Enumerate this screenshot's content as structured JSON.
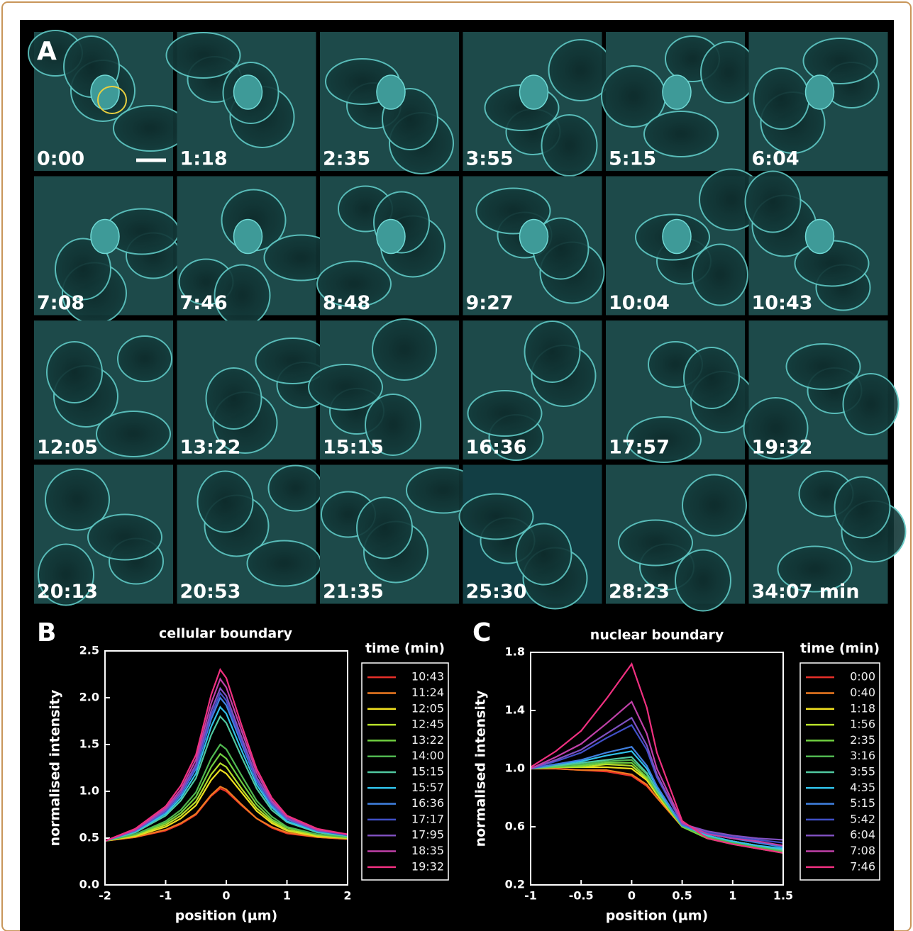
{
  "panel_a": {
    "label": "A",
    "frames": [
      "0:00",
      "1:18",
      "2:35",
      "3:55",
      "5:15",
      "6:04",
      "7:08",
      "7:46",
      "8:48",
      "9:27",
      "10:04",
      "10:43",
      "12:05",
      "13:22",
      "15:15",
      "16:36",
      "17:57",
      "19:32",
      "20:13",
      "20:53",
      "21:35",
      "25:30",
      "28:23",
      "34:07 min"
    ]
  },
  "chart_data": [
    {
      "type": "line",
      "panel_label": "B",
      "title": "cellular boundary",
      "xlabel": "position (µm)",
      "ylabel": "normalised intensity",
      "legend_title": "time (min)",
      "x": [
        -2,
        -1.5,
        -1,
        -0.75,
        -0.5,
        -0.25,
        -0.1,
        0,
        0.25,
        0.5,
        0.75,
        1,
        1.5,
        2
      ],
      "xlim": [
        -2,
        2
      ],
      "xticks": [
        -2,
        -1,
        0,
        1,
        2
      ],
      "ylim": [
        0,
        2.5
      ],
      "yticks": [
        {
          "value": 0,
          "label": "0.0"
        },
        0.5,
        {
          "value": 1,
          "label": "1.0"
        },
        1.5,
        {
          "value": 2,
          "label": "2.0"
        },
        2.5
      ],
      "series": [
        {
          "name": "10:43",
          "color": "#e8302a",
          "values": [
            0.47,
            0.51,
            0.58,
            0.65,
            0.75,
            0.95,
            1.03,
            1.0,
            0.85,
            0.71,
            0.61,
            0.55,
            0.51,
            0.49
          ]
        },
        {
          "name": "11:24",
          "color": "#f07a20",
          "values": [
            0.47,
            0.51,
            0.59,
            0.66,
            0.76,
            0.96,
            1.05,
            1.02,
            0.86,
            0.71,
            0.62,
            0.56,
            0.51,
            0.49
          ]
        },
        {
          "name": "12:05",
          "color": "#f0e020",
          "values": [
            0.47,
            0.52,
            0.62,
            0.71,
            0.85,
            1.12,
            1.23,
            1.19,
            0.99,
            0.79,
            0.66,
            0.58,
            0.52,
            0.5
          ]
        },
        {
          "name": "12:45",
          "color": "#b8e02a",
          "values": [
            0.47,
            0.53,
            0.64,
            0.74,
            0.89,
            1.18,
            1.3,
            1.26,
            1.03,
            0.82,
            0.68,
            0.59,
            0.53,
            0.5
          ]
        },
        {
          "name": "13:22",
          "color": "#70d040",
          "values": [
            0.47,
            0.54,
            0.66,
            0.77,
            0.94,
            1.26,
            1.4,
            1.35,
            1.1,
            0.86,
            0.7,
            0.61,
            0.54,
            0.51
          ]
        },
        {
          "name": "14:00",
          "color": "#50b850",
          "values": [
            0.47,
            0.54,
            0.68,
            0.8,
            0.99,
            1.35,
            1.5,
            1.45,
            1.17,
            0.9,
            0.73,
            0.62,
            0.54,
            0.51
          ]
        },
        {
          "name": "15:15",
          "color": "#50c8a0",
          "values": [
            0.47,
            0.56,
            0.74,
            0.9,
            1.14,
            1.6,
            1.8,
            1.73,
            1.37,
            1.03,
            0.8,
            0.67,
            0.56,
            0.52
          ]
        },
        {
          "name": "15:57",
          "color": "#30c0e8",
          "values": [
            0.47,
            0.57,
            0.76,
            0.93,
            1.19,
            1.69,
            1.9,
            1.83,
            1.44,
            1.07,
            0.83,
            0.68,
            0.57,
            0.53
          ]
        },
        {
          "name": "16:36",
          "color": "#4080e0",
          "values": [
            0.47,
            0.58,
            0.78,
            0.96,
            1.24,
            1.77,
            2.0,
            1.92,
            1.51,
            1.11,
            0.85,
            0.7,
            0.58,
            0.53
          ]
        },
        {
          "name": "17:17",
          "color": "#4050c8",
          "values": [
            0.47,
            0.58,
            0.79,
            0.98,
            1.26,
            1.81,
            2.05,
            1.97,
            1.54,
            1.13,
            0.87,
            0.71,
            0.58,
            0.53
          ]
        },
        {
          "name": "17:95",
          "color": "#8050c0",
          "values": [
            0.47,
            0.58,
            0.8,
            0.99,
            1.29,
            1.86,
            2.1,
            2.02,
            1.58,
            1.15,
            0.88,
            0.71,
            0.58,
            0.54
          ]
        },
        {
          "name": "18:35",
          "color": "#c040a8",
          "values": [
            0.47,
            0.59,
            0.82,
            1.02,
            1.34,
            1.94,
            2.2,
            2.11,
            1.65,
            1.2,
            0.9,
            0.73,
            0.59,
            0.54
          ]
        },
        {
          "name": "19:32",
          "color": "#f03080",
          "values": [
            0.47,
            0.6,
            0.84,
            1.06,
            1.39,
            2.03,
            2.3,
            2.21,
            1.71,
            1.24,
            0.93,
            0.74,
            0.6,
            0.54
          ]
        }
      ]
    },
    {
      "type": "line",
      "panel_label": "C",
      "title": "nuclear boundary",
      "xlabel": "position (µm)",
      "ylabel": "normalised intensity",
      "legend_title": "time (min)",
      "x": [
        -1,
        -0.75,
        -0.5,
        -0.25,
        0,
        0.15,
        0.25,
        0.5,
        0.75,
        1,
        1.25,
        1.5
      ],
      "xlim": [
        -1,
        1.5
      ],
      "xticks": [
        -1,
        -0.5,
        0,
        0.5,
        1,
        1.5
      ],
      "ylim": [
        0.2,
        1.8
      ],
      "yticks": [
        0.2,
        0.6,
        {
          "value": 1,
          "label": "1.0"
        },
        1.4,
        1.8
      ],
      "series": [
        {
          "name": "0:00",
          "color": "#e8302a",
          "values": [
            1.0,
            1.0,
            0.99,
            0.98,
            0.95,
            0.88,
            0.8,
            0.6,
            0.53,
            0.5,
            0.47,
            0.44
          ]
        },
        {
          "name": "0:40",
          "color": "#f07a20",
          "values": [
            1.0,
            1.0,
            0.99,
            0.99,
            0.96,
            0.89,
            0.8,
            0.6,
            0.53,
            0.5,
            0.47,
            0.44
          ]
        },
        {
          "name": "1:18",
          "color": "#f0e020",
          "values": [
            1.0,
            1.01,
            1.01,
            1.01,
            1.0,
            0.92,
            0.82,
            0.6,
            0.53,
            0.49,
            0.46,
            0.43
          ]
        },
        {
          "name": "1:56",
          "color": "#b8e02a",
          "values": [
            1.0,
            1.01,
            1.01,
            1.03,
            1.02,
            0.93,
            0.83,
            0.6,
            0.52,
            0.49,
            0.46,
            0.42
          ]
        },
        {
          "name": "2:35",
          "color": "#70d040",
          "values": [
            1.0,
            1.01,
            1.02,
            1.04,
            1.04,
            0.94,
            0.84,
            0.6,
            0.52,
            0.48,
            0.45,
            0.42
          ]
        },
        {
          "name": "3:16",
          "color": "#50b850",
          "values": [
            1.0,
            1.02,
            1.03,
            1.05,
            1.06,
            0.96,
            0.84,
            0.61,
            0.53,
            0.49,
            0.46,
            0.43
          ]
        },
        {
          "name": "3:55",
          "color": "#50c8a0",
          "values": [
            1.0,
            1.02,
            1.04,
            1.06,
            1.08,
            0.97,
            0.85,
            0.61,
            0.54,
            0.5,
            0.47,
            0.44
          ]
        },
        {
          "name": "4:35",
          "color": "#30c0e8",
          "values": [
            1.0,
            1.03,
            1.05,
            1.09,
            1.12,
            1.0,
            0.87,
            0.61,
            0.54,
            0.5,
            0.47,
            0.45
          ]
        },
        {
          "name": "5:15",
          "color": "#4080e0",
          "values": [
            1.0,
            1.03,
            1.06,
            1.11,
            1.15,
            1.02,
            0.88,
            0.61,
            0.55,
            0.52,
            0.49,
            0.46
          ]
        },
        {
          "name": "5:42",
          "color": "#4050c8",
          "values": [
            1.0,
            1.05,
            1.11,
            1.21,
            1.3,
            1.13,
            0.94,
            0.62,
            0.56,
            0.53,
            0.51,
            0.49
          ]
        },
        {
          "name": "6:04",
          "color": "#8050c0",
          "values": [
            1.0,
            1.06,
            1.13,
            1.24,
            1.35,
            1.16,
            0.96,
            0.62,
            0.57,
            0.54,
            0.52,
            0.51
          ]
        },
        {
          "name": "7:08",
          "color": "#c040a8",
          "values": [
            1.0,
            1.08,
            1.17,
            1.31,
            1.46,
            1.24,
            1.0,
            0.63,
            0.55,
            0.52,
            0.5,
            0.47
          ]
        },
        {
          "name": "7:46",
          "color": "#f03080",
          "values": [
            1.01,
            1.12,
            1.26,
            1.48,
            1.72,
            1.42,
            1.11,
            0.64,
            0.52,
            0.48,
            0.45,
            0.42
          ]
        }
      ]
    }
  ]
}
